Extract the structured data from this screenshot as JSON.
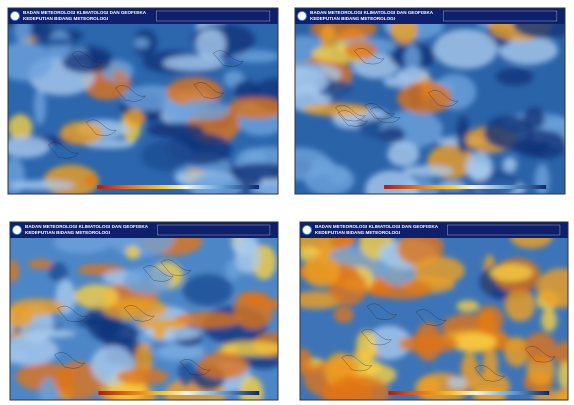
{
  "panels": [
    {
      "header": {
        "title": "BADAN METEOROLOGI KLIMATOLOGI DAN GEOFISIKA",
        "subtitle": "KEDEPUTIAN BIDANG METEOROLOGI"
      }
    },
    {
      "header": {
        "title": "BADAN METEOROLOGI KLIMATOLOGI DAN GEOFISIKA",
        "subtitle": "KEDEPUTIAN BIDANG METEOROLOGI"
      }
    },
    {
      "header": {
        "title": "BADAN METEOROLOGI KLIMATOLOGI DAN GEOFISIKA",
        "subtitle": "KEDEPUTIAN BIDANG METEOROLOGI"
      }
    },
    {
      "header": {
        "title": "BADAN METEOROLOGI KLIMATOLOGI DAN GEOFISIKA",
        "subtitle": "KEDEPUTIAN BIDANG METEOROLOGI"
      }
    }
  ]
}
